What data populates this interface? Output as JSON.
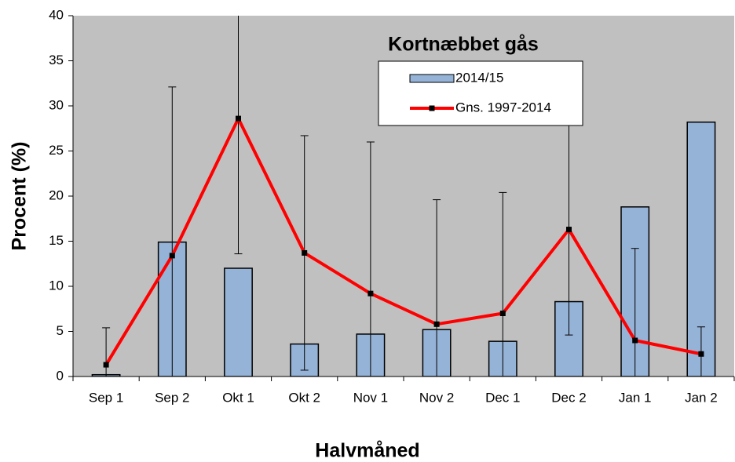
{
  "chart_data": {
    "type": "bar_line",
    "title": "Kortnæbbet gås",
    "x_label": "Halvmåned",
    "y_label": "Procent (%)",
    "categories": [
      "Sep 1",
      "Sep 2",
      "Okt 1",
      "Okt 2",
      "Nov 1",
      "Nov 2",
      "Dec 1",
      "Dec 2",
      "Jan 1",
      "Jan 2"
    ],
    "series": [
      {
        "name": "2014/15",
        "type": "bar",
        "color": "#95b3d7",
        "values": [
          0.2,
          14.9,
          12.0,
          3.6,
          4.7,
          5.2,
          3.9,
          8.3,
          18.8,
          28.2
        ]
      },
      {
        "name": "Gns. 1997-2014",
        "type": "line",
        "color": "#ff0000",
        "values": [
          1.3,
          13.4,
          28.6,
          13.7,
          9.2,
          5.8,
          7.0,
          16.3,
          4.0,
          2.5
        ],
        "errors": [
          4.1,
          18.7,
          15.0,
          13.0,
          16.8,
          13.8,
          13.4,
          11.7,
          10.2,
          3.0
        ]
      }
    ],
    "ylim": [
      0,
      40
    ],
    "yticks": [
      0,
      5,
      10,
      15,
      20,
      25,
      30,
      35,
      40
    ],
    "plot_background": "#c0c0c0"
  }
}
